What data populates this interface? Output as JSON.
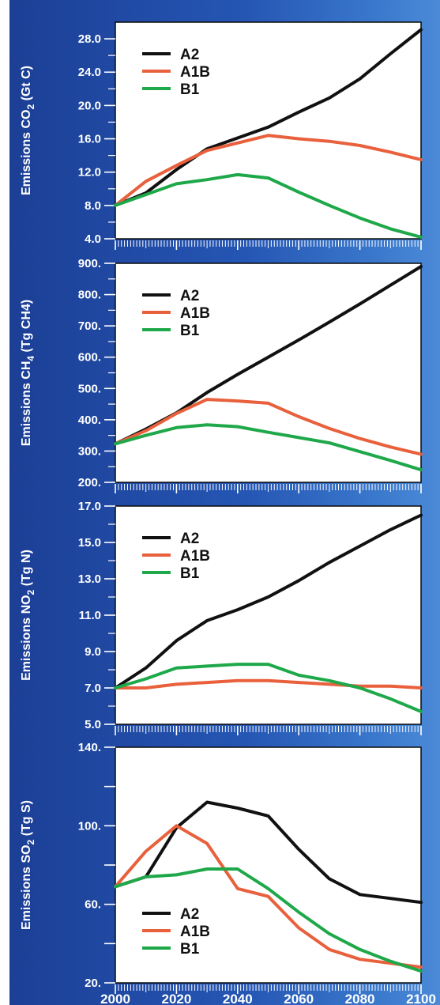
{
  "chart_data": [
    {
      "type": "line",
      "ylabel": "Emissions CO2 (Gt C)",
      "ylabel_main": "Emissions CO",
      "ylabel_sub": "2",
      "ylabel_tail": " (Gt C)",
      "ylim": [
        4.0,
        30.0
      ],
      "yticks": [
        4.0,
        8.0,
        12.0,
        16.0,
        20.0,
        24.0,
        28.0
      ],
      "ytick_labels": [
        "4.0",
        "8.0",
        "12.0",
        "16.0",
        "20.0",
        "24.0",
        "28.0"
      ],
      "x": [
        2000,
        2010,
        2020,
        2030,
        2040,
        2050,
        2060,
        2070,
        2080,
        2090,
        2100
      ],
      "legend_position": "top-left",
      "series": [
        {
          "name": "A2",
          "color": "#111111",
          "values": [
            8.0,
            9.5,
            12.3,
            14.8,
            16.1,
            17.4,
            19.2,
            20.9,
            23.2,
            26.2,
            29.1
          ]
        },
        {
          "name": "A1B",
          "color": "#e8603c",
          "values": [
            8.0,
            10.9,
            12.8,
            14.6,
            15.5,
            16.4,
            16.0,
            15.7,
            15.2,
            14.4,
            13.5
          ]
        },
        {
          "name": "B1",
          "color": "#1fa84a",
          "values": [
            8.0,
            9.3,
            10.6,
            11.1,
            11.7,
            11.3,
            9.6,
            8.0,
            6.5,
            5.2,
            4.2
          ]
        }
      ]
    },
    {
      "type": "line",
      "ylabel": "Emissions CH4 (Tg CH4)",
      "ylabel_main": "Emissions CH",
      "ylabel_sub": "4",
      "ylabel_tail": " (Tg CH4)",
      "ylim": [
        200,
        900
      ],
      "yticks": [
        200,
        300,
        400,
        500,
        600,
        700,
        800,
        900
      ],
      "ytick_labels": [
        "200.",
        "300.",
        "400.",
        "500.",
        "600.",
        "700.",
        "800.",
        "900."
      ],
      "x": [
        2000,
        2010,
        2020,
        2030,
        2040,
        2050,
        2060,
        2070,
        2080,
        2090,
        2100
      ],
      "legend_position": "top-left",
      "series": [
        {
          "name": "A2",
          "color": "#111111",
          "values": [
            323,
            370,
            422,
            487,
            545,
            600,
            655,
            712,
            770,
            830,
            890
          ]
        },
        {
          "name": "A1B",
          "color": "#e8603c",
          "values": [
            323,
            365,
            420,
            465,
            460,
            453,
            410,
            372,
            340,
            313,
            290
          ]
        },
        {
          "name": "B1",
          "color": "#1fa84a",
          "values": [
            323,
            350,
            375,
            384,
            378,
            360,
            343,
            326,
            298,
            270,
            240
          ]
        }
      ]
    },
    {
      "type": "line",
      "ylabel": "Emissions NO2 (Tg N)",
      "ylabel_main": "Emissions NO",
      "ylabel_sub": "2",
      "ylabel_tail": " (Tg N)",
      "ylim": [
        5.0,
        17.0
      ],
      "yticks": [
        5.0,
        7.0,
        9.0,
        11.0,
        13.0,
        15.0,
        17.0
      ],
      "ytick_labels": [
        "5.0",
        "7.0",
        "9.0",
        "11.0",
        "13.0",
        "15.0",
        "17.0"
      ],
      "x": [
        2000,
        2010,
        2020,
        2030,
        2040,
        2050,
        2060,
        2070,
        2080,
        2090,
        2100
      ],
      "legend_position": "top-left",
      "series": [
        {
          "name": "A2",
          "color": "#111111",
          "values": [
            7.0,
            8.1,
            9.6,
            10.7,
            11.3,
            12.0,
            12.9,
            13.9,
            14.8,
            15.7,
            16.5
          ]
        },
        {
          "name": "A1B",
          "color": "#e8603c",
          "values": [
            7.0,
            7.0,
            7.2,
            7.3,
            7.4,
            7.4,
            7.3,
            7.2,
            7.1,
            7.1,
            7.0
          ]
        },
        {
          "name": "B1",
          "color": "#1fa84a",
          "values": [
            7.0,
            7.5,
            8.1,
            8.2,
            8.3,
            8.3,
            7.7,
            7.4,
            7.0,
            6.4,
            5.7
          ]
        }
      ]
    },
    {
      "type": "line",
      "ylabel": "Emissions SO2 (Tg S)",
      "ylabel_main": "Emissions SO",
      "ylabel_sub": "2",
      "ylabel_tail": " (Tg S)",
      "ylim": [
        20,
        140
      ],
      "yticks": [
        20,
        60,
        100,
        140
      ],
      "ytick_labels": [
        "20.",
        "60.",
        "100.",
        "140."
      ],
      "minor_yticks": [
        40,
        80,
        120
      ],
      "x": [
        2000,
        2010,
        2020,
        2030,
        2040,
        2050,
        2060,
        2070,
        2080,
        2090,
        2100
      ],
      "x_tick_labels": [
        "2000",
        "2020",
        "2040",
        "2060",
        "2080",
        "2100"
      ],
      "legend_position": "bottom-left",
      "series": [
        {
          "name": "A2",
          "color": "#111111",
          "values": [
            69,
            74,
            99,
            112,
            109,
            105,
            88,
            73,
            65,
            63,
            61
          ]
        },
        {
          "name": "A1B",
          "color": "#e8603c",
          "values": [
            69,
            87,
            100,
            91,
            68,
            64,
            48,
            37,
            32,
            30,
            28
          ]
        },
        {
          "name": "B1",
          "color": "#1fa84a",
          "values": [
            69,
            74,
            75,
            78,
            78,
            68,
            56,
            45,
            37,
            31,
            26
          ]
        }
      ]
    }
  ]
}
